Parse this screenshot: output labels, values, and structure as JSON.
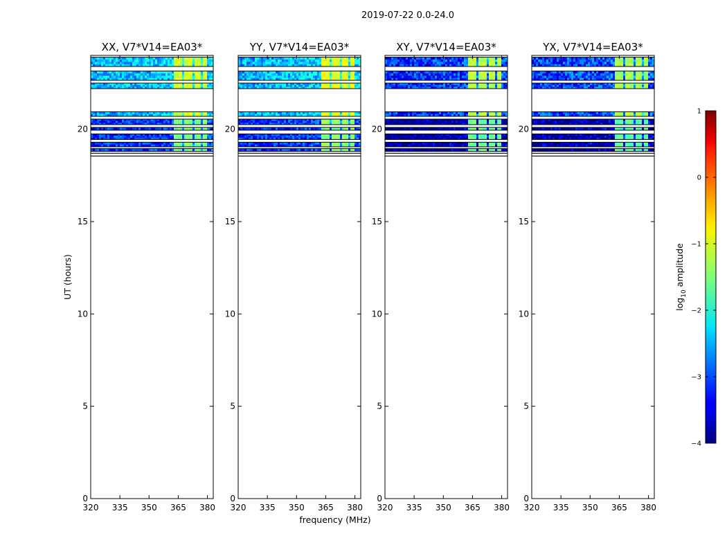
{
  "suptitle": "2019-07-22 0.0-24.0",
  "chart_data": {
    "type": "heatmap",
    "x_label": "frequency (MHz)",
    "y_label": "UT (hours)",
    "x_range": [
      320,
      383
    ],
    "y_range": [
      0,
      24
    ],
    "x_ticks": [
      320,
      335,
      350,
      365,
      380
    ],
    "y_ticks": [
      0,
      5,
      10,
      15,
      20
    ],
    "x_tick_labels": [
      "320",
      "335",
      "350",
      "365",
      "380"
    ],
    "y_tick_labels": [
      "0",
      "5",
      "10",
      "15",
      "20"
    ],
    "panels": [
      {
        "title": "XX, V7*V14=EA03*",
        "pol": "XX",
        "base_log_amp": -2.4,
        "variation": 0.5,
        "high_band_log_amp": -1.1
      },
      {
        "title": "YY, V7*V14=EA03*",
        "pol": "YY",
        "base_log_amp": -2.4,
        "variation": 0.5,
        "high_band_log_amp": -1.0
      },
      {
        "title": "XY, V7*V14=EA03*",
        "pol": "XY",
        "base_log_amp": -3.1,
        "variation": 0.6,
        "high_band_log_amp": -1.2
      },
      {
        "title": "YX, V7*V14=EA03*",
        "pol": "YX",
        "base_log_amp": -3.0,
        "variation": 0.6,
        "high_band_log_amp": -1.3
      }
    ],
    "data_time_blocks_ut_hours": [
      {
        "start": 23.4,
        "end": 23.9,
        "level": "mid"
      },
      {
        "start": 22.65,
        "end": 23.15,
        "level": "mid"
      },
      {
        "start": 22.2,
        "end": 22.5,
        "level": "mid"
      },
      {
        "start": 20.7,
        "end": 20.95,
        "level": "mid"
      },
      {
        "start": 20.25,
        "end": 20.55,
        "level": "low"
      },
      {
        "start": 19.95,
        "end": 20.1,
        "level": "low"
      },
      {
        "start": 19.45,
        "end": 19.75,
        "level": "low"
      },
      {
        "start": 19.05,
        "end": 19.3,
        "level": "low"
      },
      {
        "start": 18.8,
        "end": 18.95,
        "level": "low"
      }
    ],
    "flagged_lines_ut_hours": [
      18.55,
      18.7
    ],
    "rfi_band_mhz": [
      363,
      380
    ],
    "rfi_subbands_mhz": [
      [
        363,
        367
      ],
      [
        368,
        372
      ],
      [
        373,
        377
      ],
      [
        378,
        380
      ]
    ],
    "colorbar": {
      "label": "log10 amplitude",
      "label_main": "log",
      "label_sub": "10",
      "label_rest": " amplitude",
      "min": -4,
      "max": 1,
      "ticks": [
        "1",
        "0",
        "−1",
        "−2",
        "−3",
        "−4"
      ],
      "tick_values": [
        1,
        0,
        -1,
        -2,
        -3,
        -4
      ],
      "colormap": "jet"
    }
  }
}
